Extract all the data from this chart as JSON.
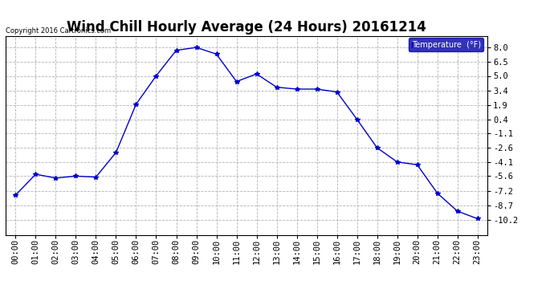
{
  "title": "Wind Chill Hourly Average (24 Hours) 20161214",
  "copyright_text": "Copyright 2016 Cartronics.com",
  "legend_label": "Temperature  (°F)",
  "hours": [
    "00:00",
    "01:00",
    "02:00",
    "03:00",
    "04:00",
    "05:00",
    "06:00",
    "07:00",
    "08:00",
    "09:00",
    "10:00",
    "11:00",
    "12:00",
    "13:00",
    "14:00",
    "15:00",
    "16:00",
    "17:00",
    "18:00",
    "19:00",
    "20:00",
    "21:00",
    "22:00",
    "23:00"
  ],
  "values": [
    -7.6,
    -5.4,
    -5.8,
    -5.6,
    -5.7,
    -3.1,
    2.0,
    5.0,
    7.7,
    8.0,
    7.3,
    4.4,
    5.2,
    3.8,
    3.6,
    3.6,
    3.3,
    0.4,
    -2.6,
    -4.1,
    -4.4,
    -7.4,
    -9.3,
    -10.1
  ],
  "ylim": [
    -11.8,
    9.2
  ],
  "yticks": [
    -10.2,
    -8.7,
    -7.2,
    -5.6,
    -4.1,
    -2.6,
    -1.1,
    0.4,
    1.9,
    3.4,
    5.0,
    6.5,
    8.0
  ],
  "line_color": "#0000cc",
  "marker": "*",
  "marker_size": 4,
  "bg_color": "#ffffff",
  "plot_bg_color": "#ffffff",
  "grid_color": "#aaaaaa",
  "title_fontsize": 12,
  "copyright_fontsize": 6,
  "legend_bg_color": "#0000aa",
  "legend_text_color": "#ffffff",
  "tick_fontsize": 7.5,
  "ytick_fontsize": 7.5
}
